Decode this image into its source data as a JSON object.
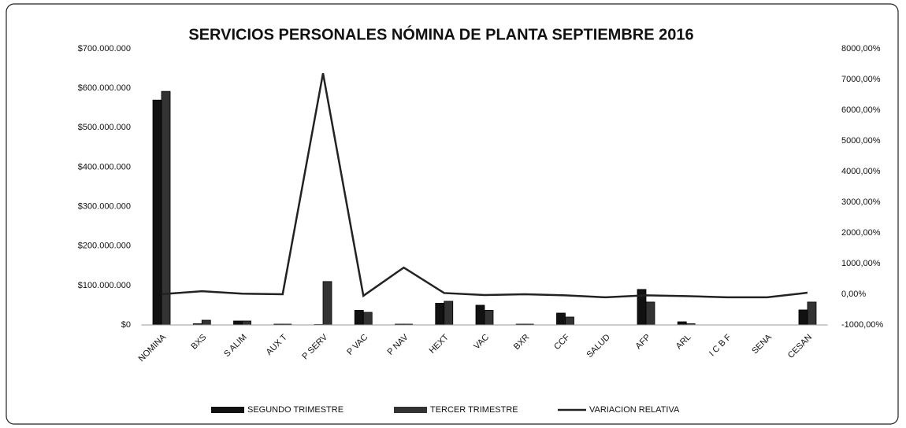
{
  "chart_data": {
    "type": "bar",
    "title": "SERVICIOS PERSONALES NÓMINA DE PLANTA SEPTIEMBRE 2016",
    "categories": [
      "NOMINA",
      "BXS",
      "S ALIM",
      "AUX T",
      "P SERV",
      "P VAC",
      "P NAV",
      "HEXT",
      "VAC",
      "BXR",
      "CCF",
      "SALUD",
      "AFP",
      "ARL",
      "I C B F",
      "SENA",
      "CESAN"
    ],
    "series": [
      {
        "name": "SEGUNDO TRIMESTRE",
        "color": "#111111",
        "type": "bar",
        "values": [
          570000000,
          3000000,
          10000000,
          2000000,
          1000000,
          37000000,
          2000000,
          55000000,
          50000000,
          2000000,
          30000000,
          0,
          90000000,
          8000000,
          0,
          0,
          38000000
        ]
      },
      {
        "name": "TERCER TRIMESTRE",
        "color": "#333333",
        "type": "bar",
        "values": [
          592000000,
          12000000,
          10000000,
          2000000,
          110000000,
          32000000,
          2000000,
          60000000,
          37000000,
          2000000,
          20000000,
          0,
          58000000,
          3000000,
          0,
          0,
          58000000
        ]
      },
      {
        "name": "VARIACION RELATIVA",
        "color": "#222222",
        "type": "line",
        "axis": "y2",
        "values": [
          4,
          100,
          20,
          0,
          7200,
          -50,
          870,
          40,
          -26,
          0,
          -35,
          -100,
          -35,
          -60,
          -100,
          -100,
          50
        ]
      }
    ],
    "ylim": [
      0,
      700000000
    ],
    "yticks": [
      {
        "value": 0,
        "label": "$0"
      },
      {
        "value": 100000000,
        "label": "$100.000.000"
      },
      {
        "value": 200000000,
        "label": "$200.000.000"
      },
      {
        "value": 300000000,
        "label": "$300.000.000"
      },
      {
        "value": 400000000,
        "label": "$400.000.000"
      },
      {
        "value": 500000000,
        "label": "$500.000.000"
      },
      {
        "value": 600000000,
        "label": "$600.000.000"
      },
      {
        "value": 700000000,
        "label": "$700.000.000"
      }
    ],
    "y2lim": [
      -1000,
      8000
    ],
    "y2ticks": [
      {
        "value": -1000,
        "label": "-1000,00%"
      },
      {
        "value": 0,
        "label": "0,00%"
      },
      {
        "value": 1000,
        "label": "1000,00%"
      },
      {
        "value": 2000,
        "label": "2000,00%"
      },
      {
        "value": 3000,
        "label": "3000,00%"
      },
      {
        "value": 4000,
        "label": "4000,00%"
      },
      {
        "value": 5000,
        "label": "5000,00%"
      },
      {
        "value": 6000,
        "label": "6000,00%"
      },
      {
        "value": 7000,
        "label": "7000,00%"
      },
      {
        "value": 8000,
        "label": "8000,00%"
      }
    ],
    "grid": false,
    "legend": "bottom"
  }
}
